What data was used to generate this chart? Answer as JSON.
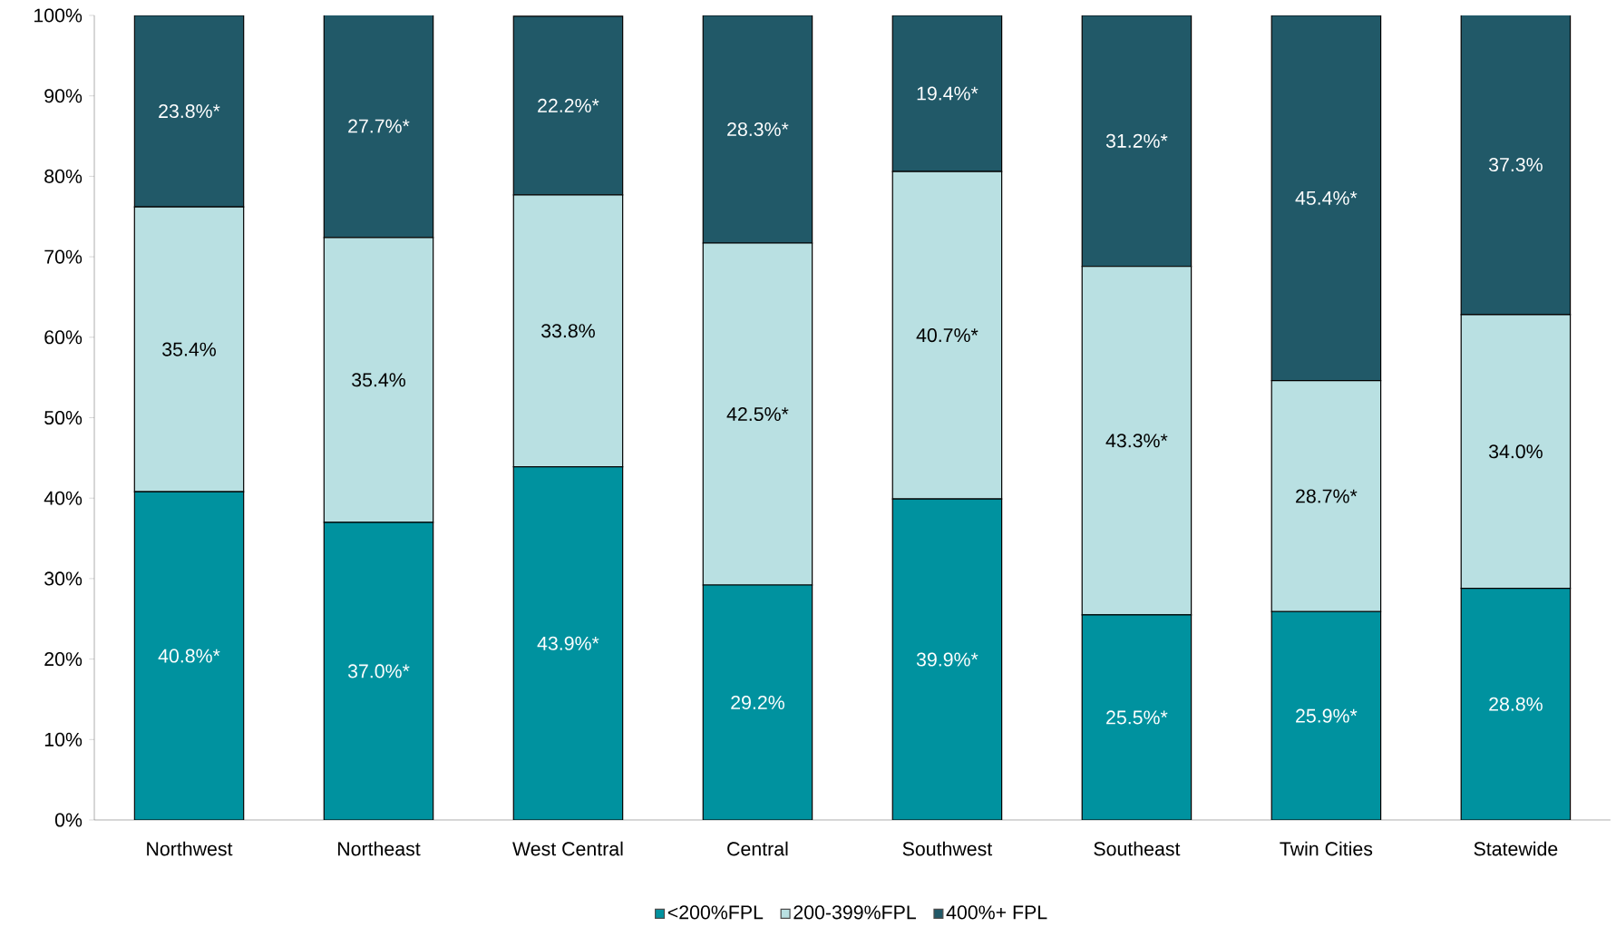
{
  "chart_data": {
    "type": "bar",
    "stacked": true,
    "legend": "bottom",
    "categories": [
      "Northwest",
      "Northeast",
      "West Central",
      "Central",
      "Southwest",
      "Southeast",
      "Twin Cities",
      "Statewide"
    ],
    "ylim": [
      0,
      100
    ],
    "yticks": [
      {
        "value": 0,
        "label": "0%"
      },
      {
        "value": 10,
        "label": "10%"
      },
      {
        "value": 20,
        "label": "20%"
      },
      {
        "value": 30,
        "label": "30%"
      },
      {
        "value": 40,
        "label": "40%"
      },
      {
        "value": 50,
        "label": "50%"
      },
      {
        "value": 60,
        "label": "60%"
      },
      {
        "value": 70,
        "label": "70%"
      },
      {
        "value": 80,
        "label": "80%"
      },
      {
        "value": 90,
        "label": "90%"
      },
      {
        "value": 100,
        "label": "100%"
      }
    ],
    "series": [
      {
        "name": "<200%FPL",
        "color": "#00929f",
        "values": [
          40.8,
          37.0,
          43.9,
          29.2,
          39.9,
          25.5,
          25.9,
          28.8
        ],
        "value_labels": [
          "40.8%*",
          "37.0%*",
          "43.9%*",
          "29.2%",
          "39.9%*",
          "25.5%*",
          "25.9%*",
          "28.8%"
        ]
      },
      {
        "name": "200-399%FPL",
        "color": "#b9e0e2",
        "values": [
          35.4,
          35.4,
          33.8,
          42.5,
          40.7,
          43.3,
          28.7,
          34.0
        ],
        "value_labels": [
          "35.4%",
          "35.4%",
          "33.8%",
          "42.5%*",
          "40.7%*",
          "43.3%*",
          "28.7%*",
          "34.0%"
        ]
      },
      {
        "name": "400%+ FPL",
        "color": "#215968",
        "values": [
          23.8,
          27.7,
          22.2,
          28.3,
          19.4,
          31.2,
          45.4,
          37.3
        ],
        "value_labels": [
          "23.8%*",
          "27.7%*",
          "22.2%*",
          "28.3%*",
          "19.4%*",
          "31.2%*",
          "45.4%*",
          "37.3%"
        ]
      }
    ]
  }
}
